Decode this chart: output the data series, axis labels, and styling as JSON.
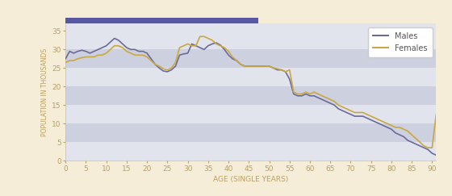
{
  "males": [
    27.5,
    29.5,
    29.0,
    29.5,
    29.8,
    29.5,
    29.0,
    29.5,
    30.0,
    30.5,
    31.0,
    32.0,
    33.0,
    32.5,
    31.5,
    30.5,
    30.0,
    30.0,
    29.5,
    29.5,
    29.0,
    27.5,
    26.0,
    25.0,
    24.2,
    24.0,
    24.5,
    25.5,
    28.5,
    28.8,
    29.0,
    31.5,
    31.0,
    30.5,
    30.0,
    31.0,
    31.5,
    31.8,
    31.2,
    30.0,
    28.5,
    27.5,
    27.0,
    26.0,
    25.5,
    25.5,
    25.5,
    25.5,
    25.5,
    25.5,
    25.5,
    25.0,
    24.5,
    24.5,
    24.0,
    22.0,
    18.0,
    17.5,
    17.5,
    18.0,
    17.5,
    17.5,
    17.0,
    16.5,
    16.0,
    15.5,
    15.0,
    14.0,
    13.5,
    13.0,
    12.5,
    12.0,
    12.0,
    12.0,
    11.5,
    11.0,
    10.5,
    10.0,
    9.5,
    9.0,
    8.5,
    7.5,
    7.0,
    6.5,
    5.5,
    5.0,
    4.5,
    4.0,
    3.5,
    3.0,
    2.0,
    1.5
  ],
  "females": [
    26.5,
    27.0,
    27.0,
    27.5,
    27.8,
    28.0,
    28.0,
    28.0,
    28.5,
    28.5,
    29.0,
    30.0,
    31.0,
    31.0,
    30.5,
    29.5,
    29.0,
    28.5,
    28.5,
    28.5,
    28.0,
    27.0,
    26.0,
    25.5,
    24.8,
    24.5,
    25.0,
    26.5,
    30.5,
    31.0,
    31.5,
    31.0,
    31.0,
    33.5,
    33.5,
    33.0,
    32.5,
    31.5,
    31.0,
    30.5,
    29.5,
    28.0,
    27.0,
    26.0,
    25.5,
    25.5,
    25.5,
    25.5,
    25.5,
    25.5,
    25.5,
    25.0,
    24.8,
    24.5,
    24.0,
    24.5,
    18.5,
    18.0,
    18.0,
    18.5,
    18.0,
    18.5,
    18.0,
    17.5,
    17.0,
    16.5,
    16.0,
    15.0,
    14.5,
    14.0,
    13.5,
    13.0,
    13.0,
    13.0,
    12.5,
    12.0,
    11.5,
    11.0,
    10.5,
    10.0,
    9.5,
    9.0,
    9.0,
    8.5,
    8.0,
    7.0,
    6.0,
    5.0,
    4.0,
    3.5,
    3.5,
    12.5
  ],
  "ages": [
    0,
    1,
    2,
    3,
    4,
    5,
    6,
    7,
    8,
    9,
    10,
    11,
    12,
    13,
    14,
    15,
    16,
    17,
    18,
    19,
    20,
    21,
    22,
    23,
    24,
    25,
    26,
    27,
    28,
    29,
    30,
    31,
    32,
    33,
    34,
    35,
    36,
    37,
    38,
    39,
    40,
    41,
    42,
    43,
    44,
    45,
    46,
    47,
    48,
    49,
    50,
    51,
    52,
    53,
    54,
    55,
    56,
    57,
    58,
    59,
    60,
    61,
    62,
    63,
    64,
    65,
    66,
    67,
    68,
    69,
    70,
    71,
    72,
    73,
    74,
    75,
    76,
    77,
    78,
    79,
    80,
    81,
    82,
    83,
    84,
    85,
    86,
    87,
    88,
    89,
    90,
    91
  ],
  "male_color": "#6b6b9b",
  "female_color": "#c8a840",
  "background_outer": "#f5edd8",
  "xlabel": "AGE (SINGLE YEARS)",
  "ylabel": "POPULATION IN THOUSANDS",
  "ylim": [
    0,
    37
  ],
  "xlim": [
    0,
    91
  ],
  "xticks": [
    0,
    5,
    10,
    15,
    20,
    25,
    30,
    35,
    40,
    45,
    50,
    55,
    60,
    65,
    70,
    75,
    80,
    85,
    90
  ],
  "yticks": [
    0,
    5,
    10,
    15,
    20,
    25,
    30,
    35
  ],
  "legend_males": "Males",
  "legend_females": "Females",
  "tick_color": "#b8a060",
  "label_color": "#b8a060",
  "stripe_colors": [
    "#e2e4ed",
    "#cdd0de"
  ],
  "top_bar_color": "#5858a0",
  "line_width": 1.2
}
